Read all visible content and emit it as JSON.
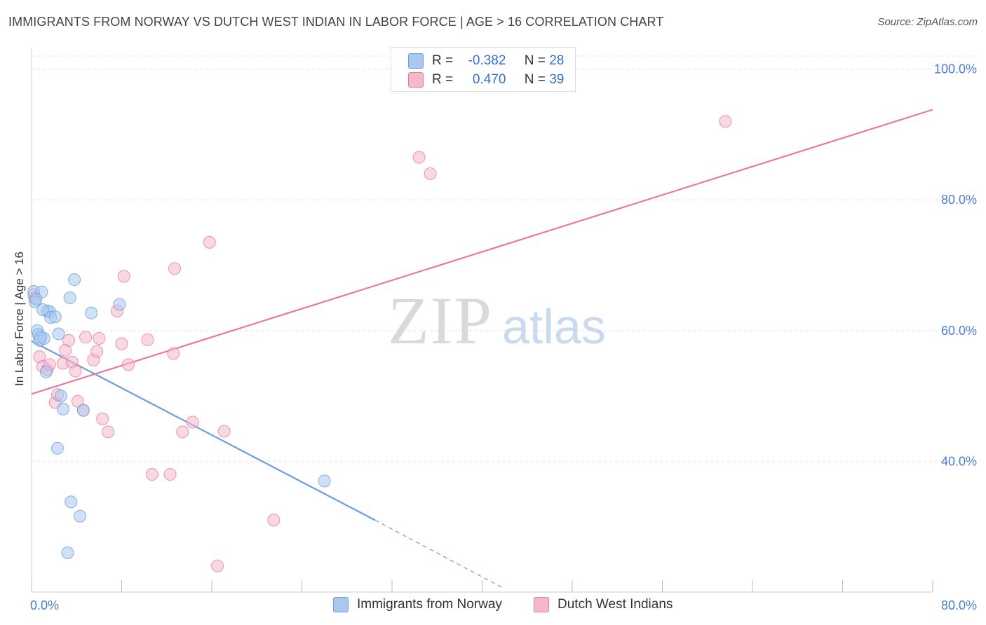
{
  "header": {
    "title": "IMMIGRANTS FROM NORWAY VS DUTCH WEST INDIAN IN LABOR FORCE | AGE > 16 CORRELATION CHART",
    "source": "Source: ZipAtlas.com"
  },
  "watermark": {
    "zip": "ZIP",
    "atlas": "atlas"
  },
  "legend": {
    "rows": [
      {
        "r_label": "R =",
        "r_value": "-0.382",
        "n_label": "N =",
        "n_value": "28",
        "color": "#aac8ee"
      },
      {
        "r_label": "R =",
        "r_value": "0.470",
        "n_label": "N =",
        "n_value": "39",
        "color": "#f5b8cb"
      }
    ]
  },
  "bottom_legend": {
    "items": [
      {
        "label": "Immigrants from Norway",
        "color": "#aac8ee"
      },
      {
        "label": "Dutch West Indians",
        "color": "#f5b8cb"
      }
    ]
  },
  "chart_data": {
    "type": "scatter",
    "title": "IMMIGRANTS FROM NORWAY VS DUTCH WEST INDIAN IN LABOR FORCE | AGE > 16 CORRELATION CHART",
    "xlabel": "",
    "ylabel": "In Labor Force | Age > 16",
    "xlim": [
      0,
      80
    ],
    "ylim": [
      20,
      102
    ],
    "x_tick_labels": [
      "0.0%",
      "80.0%"
    ],
    "y_ticks": [
      40,
      60,
      80,
      100
    ],
    "y_tick_labels": [
      "40.0%",
      "60.0%",
      "80.0%",
      "100.0%"
    ],
    "grid": true,
    "legend_position": "top-center",
    "series": [
      {
        "name": "Immigrants from Norway",
        "color": "#6d9de0",
        "fill": "#aac8ee",
        "points": [
          [
            0.2,
            66.0
          ],
          [
            0.3,
            64.4
          ],
          [
            0.5,
            60.0
          ],
          [
            0.6,
            59.4
          ],
          [
            0.7,
            58.5
          ],
          [
            0.9,
            65.9
          ],
          [
            1.1,
            58.8
          ],
          [
            1.3,
            53.7
          ],
          [
            1.4,
            63.0
          ],
          [
            1.6,
            62.9
          ],
          [
            1.7,
            62.0
          ],
          [
            2.1,
            62.1
          ],
          [
            2.3,
            42.0
          ],
          [
            2.4,
            59.5
          ],
          [
            2.6,
            50.0
          ],
          [
            2.8,
            48.0
          ],
          [
            3.4,
            65.0
          ],
          [
            3.5,
            33.8
          ],
          [
            3.8,
            67.8
          ],
          [
            4.3,
            31.6
          ],
          [
            3.2,
            26.0
          ],
          [
            4.6,
            47.8
          ],
          [
            5.3,
            62.7
          ],
          [
            7.8,
            64.0
          ],
          [
            26.0,
            37.0
          ],
          [
            0.4,
            64.8
          ],
          [
            0.8,
            59.0
          ],
          [
            1.0,
            63.2
          ]
        ],
        "trend_solid": [
          [
            0,
            58.4
          ],
          [
            30.5,
            31.0
          ]
        ],
        "trend_dashed": [
          [
            30.5,
            31.0
          ],
          [
            42.0,
            20.5
          ]
        ]
      },
      {
        "name": "Dutch West Indians",
        "color": "#e87aa0",
        "fill": "#f5b8cb",
        "points": [
          [
            0.2,
            65.5
          ],
          [
            0.3,
            65.0
          ],
          [
            0.7,
            56.0
          ],
          [
            1.0,
            54.5
          ],
          [
            1.4,
            54.0
          ],
          [
            1.6,
            54.8
          ],
          [
            2.1,
            49.0
          ],
          [
            2.3,
            50.2
          ],
          [
            2.8,
            55.0
          ],
          [
            3.0,
            57.0
          ],
          [
            3.3,
            58.5
          ],
          [
            3.6,
            55.2
          ],
          [
            3.9,
            53.8
          ],
          [
            4.1,
            49.2
          ],
          [
            4.6,
            47.8
          ],
          [
            4.8,
            59.0
          ],
          [
            5.5,
            55.5
          ],
          [
            5.8,
            56.8
          ],
          [
            6.0,
            58.8
          ],
          [
            6.3,
            46.5
          ],
          [
            6.8,
            44.5
          ],
          [
            7.6,
            63.0
          ],
          [
            8.0,
            58.0
          ],
          [
            8.2,
            68.3
          ],
          [
            8.6,
            54.8
          ],
          [
            10.3,
            58.6
          ],
          [
            10.7,
            38.0
          ],
          [
            12.3,
            38.0
          ],
          [
            12.6,
            56.5
          ],
          [
            12.7,
            69.5
          ],
          [
            13.4,
            44.5
          ],
          [
            14.3,
            46.0
          ],
          [
            15.8,
            73.5
          ],
          [
            16.5,
            24.0
          ],
          [
            17.1,
            44.6
          ],
          [
            21.5,
            31.0
          ],
          [
            34.4,
            86.5
          ],
          [
            35.4,
            84.0
          ],
          [
            61.6,
            92.0
          ]
        ],
        "trend_solid": [
          [
            0,
            50.3
          ],
          [
            80,
            93.8
          ]
        ]
      }
    ]
  }
}
